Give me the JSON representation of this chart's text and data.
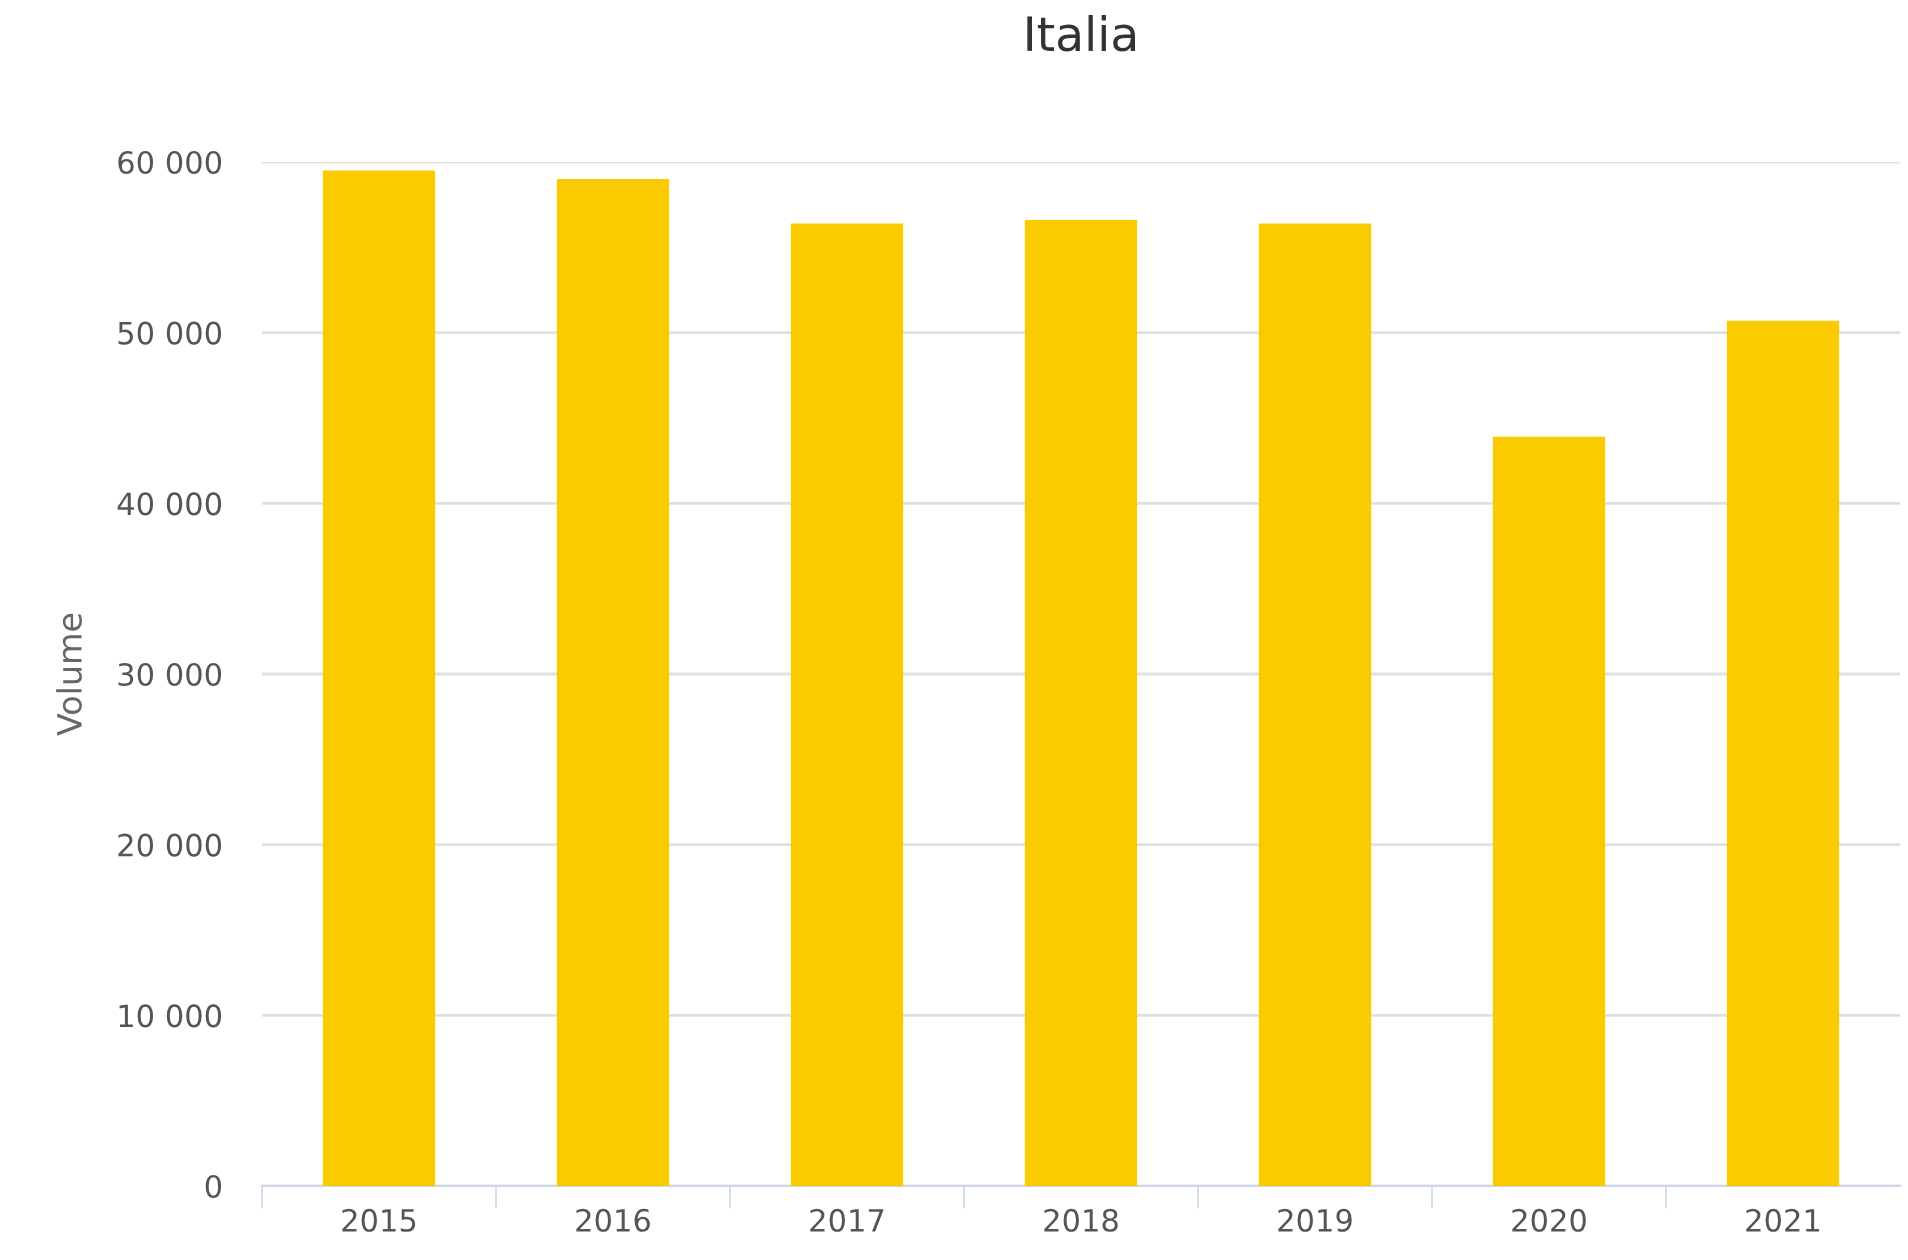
{
  "chart_data": {
    "type": "bar",
    "title": "Italia",
    "ylabel": "Volume",
    "categories": [
      "2015",
      "2016",
      "2017",
      "2018",
      "2019",
      "2020",
      "2021"
    ],
    "values": [
      59500,
      59000,
      56400,
      56600,
      56400,
      43900,
      50700
    ],
    "color": "#facb00",
    "ylim": [
      0,
      60000
    ],
    "yticks": [
      {
        "value": 0,
        "label": "0"
      },
      {
        "value": 10000,
        "label": "10 000"
      },
      {
        "value": 20000,
        "label": "20 000"
      },
      {
        "value": 30000,
        "label": "30 000"
      },
      {
        "value": 40000,
        "label": "40 000"
      },
      {
        "value": 50000,
        "label": "50 000"
      },
      {
        "value": 60000,
        "label": "60 000"
      }
    ],
    "grid": "y",
    "legend": false
  }
}
